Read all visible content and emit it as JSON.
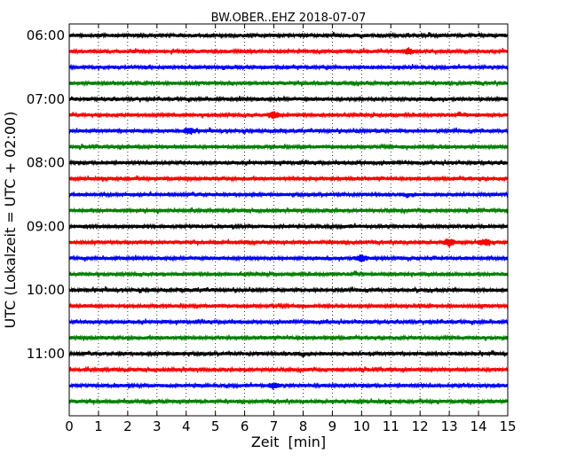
{
  "chart_data": {
    "type": "line",
    "title": "BW.OBER..EHZ 2018-07-07",
    "xlabel": "Zeit  [min]",
    "ylabel": "UTC (Lokalzeit = UTC + 02:00)",
    "xlim": [
      0,
      15
    ],
    "x_ticks": [
      "0",
      "1",
      "2",
      "3",
      "4",
      "5",
      "6",
      "7",
      "8",
      "9",
      "10",
      "11",
      "12",
      "13",
      "14",
      "15"
    ],
    "y_ticks": [
      "06:00",
      "07:00",
      "08:00",
      "09:00",
      "10:00",
      "11:00"
    ],
    "grid": "vertical dotted",
    "trace_interval_minutes": 15,
    "trace_color_cycle": [
      "#000000",
      "#ff0000",
      "#0000ff",
      "#008000"
    ],
    "traces": [
      {
        "start": "06:00",
        "color": "#000000"
      },
      {
        "start": "06:15",
        "color": "#ff0000",
        "events_min": [
          11.6
        ]
      },
      {
        "start": "06:30",
        "color": "#0000ff"
      },
      {
        "start": "06:45",
        "color": "#008000"
      },
      {
        "start": "07:00",
        "color": "#000000"
      },
      {
        "start": "07:15",
        "color": "#ff0000",
        "events_min": [
          7.0
        ]
      },
      {
        "start": "07:30",
        "color": "#0000ff",
        "events_min": [
          4.1
        ]
      },
      {
        "start": "07:45",
        "color": "#008000"
      },
      {
        "start": "08:00",
        "color": "#000000"
      },
      {
        "start": "08:15",
        "color": "#ff0000"
      },
      {
        "start": "08:30",
        "color": "#0000ff"
      },
      {
        "start": "08:45",
        "color": "#008000"
      },
      {
        "start": "09:00",
        "color": "#000000"
      },
      {
        "start": "09:15",
        "color": "#ff0000",
        "events_min": [
          13.0,
          14.2
        ]
      },
      {
        "start": "09:30",
        "color": "#0000ff",
        "events_min": [
          10.0
        ]
      },
      {
        "start": "09:45",
        "color": "#008000"
      },
      {
        "start": "10:00",
        "color": "#000000"
      },
      {
        "start": "10:15",
        "color": "#ff0000"
      },
      {
        "start": "10:30",
        "color": "#0000ff"
      },
      {
        "start": "10:45",
        "color": "#008000"
      },
      {
        "start": "11:00",
        "color": "#000000"
      },
      {
        "start": "11:15",
        "color": "#ff0000"
      },
      {
        "start": "11:30",
        "color": "#0000ff",
        "events_min": [
          7.0
        ]
      },
      {
        "start": "11:45",
        "color": "#008000"
      }
    ]
  }
}
